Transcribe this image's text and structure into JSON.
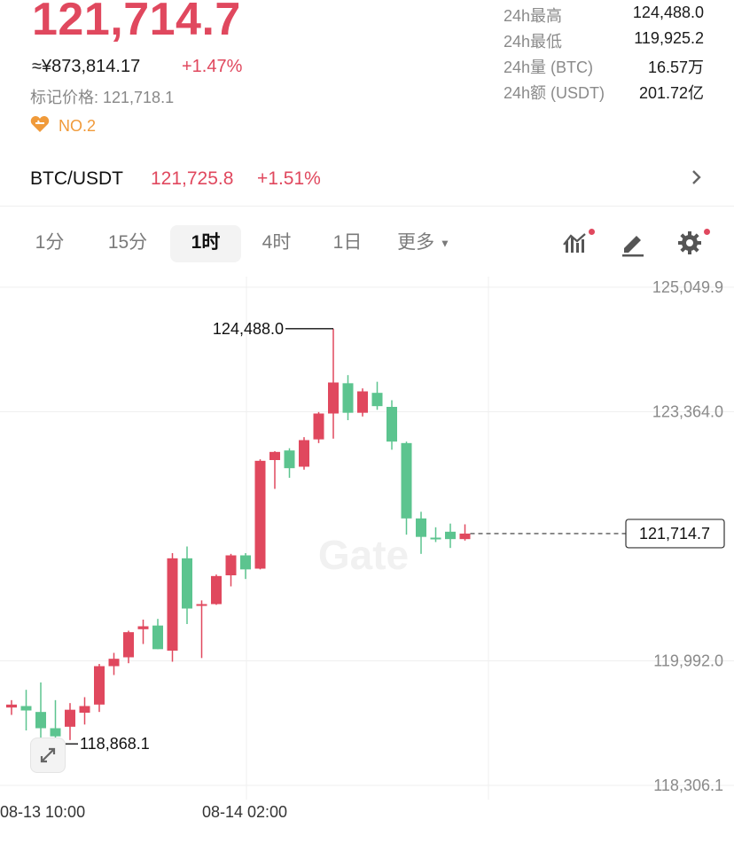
{
  "header": {
    "last_price": "121,714.7",
    "cny_price": "≈¥873,814.17",
    "change_pct": "+1.47%",
    "mark_price": "标记价格: 121,718.1",
    "rank": "NO.2"
  },
  "stats": [
    {
      "label": "24h最高",
      "value": "124,488.0"
    },
    {
      "label": "24h最低",
      "value": "119,925.2"
    },
    {
      "label": "24h量 (BTC)",
      "value": "16.57万"
    },
    {
      "label": "24h额 (USDT)",
      "value": "201.72亿"
    }
  ],
  "pair": {
    "symbol": "BTC/USDT",
    "price": "121,725.8",
    "change": "+1.51%"
  },
  "timeframes": [
    {
      "label": "1分",
      "active": false
    },
    {
      "label": "15分",
      "active": false
    },
    {
      "label": "1时",
      "active": true
    },
    {
      "label": "4时",
      "active": false
    },
    {
      "label": "1日",
      "active": false
    },
    {
      "label": "更多",
      "active": false
    }
  ],
  "icons": {
    "indicators": "indicator-chart-icon",
    "draw": "pencil-icon",
    "settings": "gear-icon",
    "expand": "expand-arrows-icon",
    "rank": "heart-badge-icon",
    "more": "chevron-right-icon"
  },
  "colors": {
    "up": "#e0485e",
    "down": "#5cc48f",
    "grid": "#efefef",
    "axis_text": "#8a8a8a"
  },
  "chart_data": {
    "type": "candlestick",
    "watermark": "Gate",
    "y_ticks": [
      125049.9,
      123364.0,
      121714.7,
      119992.0,
      118306.1
    ],
    "y_tick_labels": [
      "125,049.9",
      "123,364.0",
      "121,714.7",
      "119,992.0",
      "118,306.1"
    ],
    "ylim": [
      118306.1,
      125049.9
    ],
    "x_labels": [
      "08-13 10:00",
      "08-14 02:00"
    ],
    "annotations": {
      "high": {
        "label": "124,488.0",
        "value": 124488.0
      },
      "low": {
        "label": "118,868.1",
        "value": 118868.1
      },
      "last": {
        "label": "121,714.7",
        "value": 121714.7
      }
    },
    "candles": [
      {
        "o": 119360,
        "h": 119460,
        "l": 119260,
        "c": 119400
      },
      {
        "o": 119380,
        "h": 119600,
        "l": 119050,
        "c": 119320
      },
      {
        "o": 119300,
        "h": 119700,
        "l": 118900,
        "c": 119080
      },
      {
        "o": 119080,
        "h": 119460,
        "l": 118868.1,
        "c": 118970
      },
      {
        "o": 119100,
        "h": 119420,
        "l": 118920,
        "c": 119330
      },
      {
        "o": 119290,
        "h": 119500,
        "l": 119130,
        "c": 119380
      },
      {
        "o": 119400,
        "h": 119950,
        "l": 119300,
        "c": 119920
      },
      {
        "o": 119920,
        "h": 120100,
        "l": 119800,
        "c": 120020
      },
      {
        "o": 120040,
        "h": 120400,
        "l": 119960,
        "c": 120380
      },
      {
        "o": 120420,
        "h": 120550,
        "l": 120220,
        "c": 120460
      },
      {
        "o": 120470,
        "h": 120560,
        "l": 120150,
        "c": 120150
      },
      {
        "o": 120130,
        "h": 121450,
        "l": 119980,
        "c": 121380
      },
      {
        "o": 121380,
        "h": 121540,
        "l": 120490,
        "c": 120700
      },
      {
        "o": 120740,
        "h": 120810,
        "l": 120030,
        "c": 120760
      },
      {
        "o": 120760,
        "h": 121160,
        "l": 120750,
        "c": 121140
      },
      {
        "o": 121150,
        "h": 121440,
        "l": 121000,
        "c": 121420
      },
      {
        "o": 121420,
        "h": 121450,
        "l": 121100,
        "c": 121230
      },
      {
        "o": 121240,
        "h": 122720,
        "l": 121230,
        "c": 122700
      },
      {
        "o": 122710,
        "h": 122830,
        "l": 122320,
        "c": 122820
      },
      {
        "o": 122840,
        "h": 122870,
        "l": 122470,
        "c": 122600
      },
      {
        "o": 122620,
        "h": 123020,
        "l": 122580,
        "c": 122980
      },
      {
        "o": 122990,
        "h": 123360,
        "l": 122940,
        "c": 123340
      },
      {
        "o": 123340,
        "h": 124488.0,
        "l": 123000,
        "c": 123760
      },
      {
        "o": 123750,
        "h": 123860,
        "l": 123250,
        "c": 123350
      },
      {
        "o": 123350,
        "h": 123680,
        "l": 123300,
        "c": 123640
      },
      {
        "o": 123620,
        "h": 123770,
        "l": 123390,
        "c": 123440
      },
      {
        "o": 123430,
        "h": 123520,
        "l": 122850,
        "c": 122960
      },
      {
        "o": 122940,
        "h": 122960,
        "l": 121700,
        "c": 121920
      },
      {
        "o": 121920,
        "h": 122010,
        "l": 121440,
        "c": 121670
      },
      {
        "o": 121660,
        "h": 121800,
        "l": 121600,
        "c": 121650
      },
      {
        "o": 121740,
        "h": 121850,
        "l": 121520,
        "c": 121640
      },
      {
        "o": 121640,
        "h": 121840,
        "l": 121620,
        "c": 121714.7
      }
    ]
  }
}
